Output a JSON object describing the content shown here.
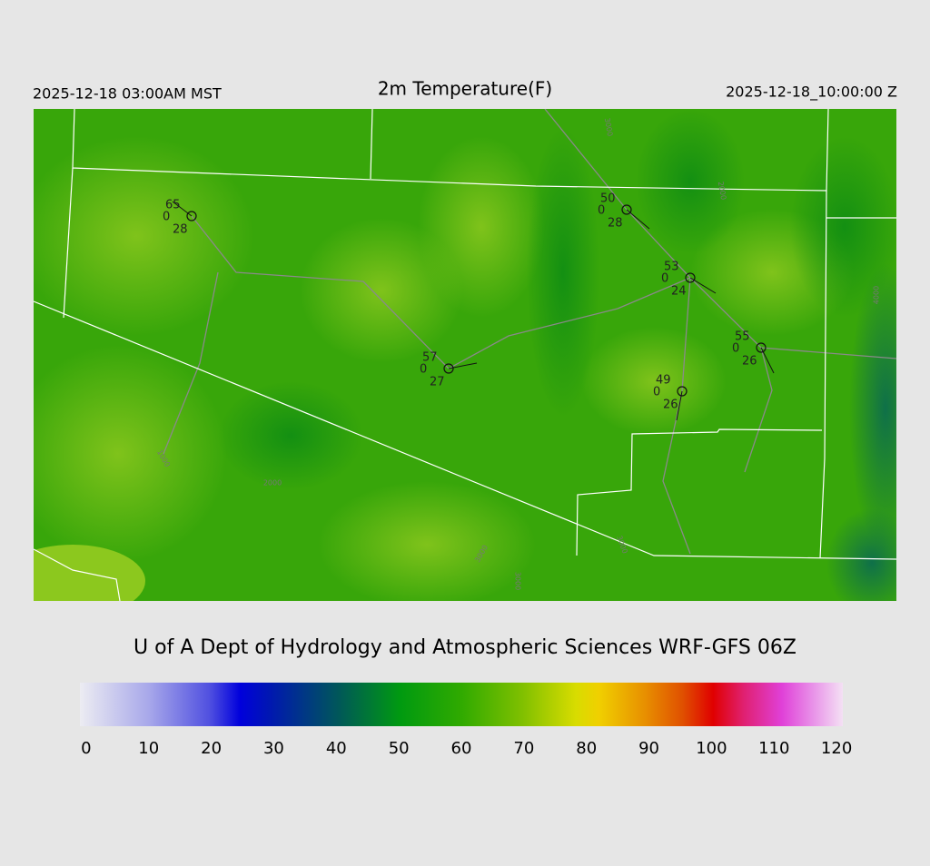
{
  "header": {
    "left": "2025-12-18 03:00AM MST",
    "title": "2m Temperature(F)",
    "right": "2025-12-18_10:00:00 Z"
  },
  "stations": [
    {
      "temperature": 65,
      "code": 0,
      "dewpoint": 28
    },
    {
      "temperature": 50,
      "code": 0,
      "dewpoint": 28
    },
    {
      "temperature": 53,
      "code": 0,
      "dewpoint": 24
    },
    {
      "temperature": 55,
      "code": 0,
      "dewpoint": 26
    },
    {
      "temperature": 57,
      "code": 0,
      "dewpoint": 27
    },
    {
      "temperature": 49,
      "code": 0,
      "dewpoint": 26
    }
  ],
  "contour_labels": [
    "2000",
    "3000",
    "1000",
    "2000",
    "3000",
    "3000",
    "3000",
    "4000"
  ],
  "credit": "U of A Dept of Hydrology and Atmospheric Sciences WRF-GFS 06Z",
  "colorbar": {
    "range": [
      -1,
      121
    ],
    "ticks": [
      0,
      10,
      20,
      30,
      40,
      50,
      60,
      70,
      80,
      90,
      100,
      110,
      120
    ]
  }
}
